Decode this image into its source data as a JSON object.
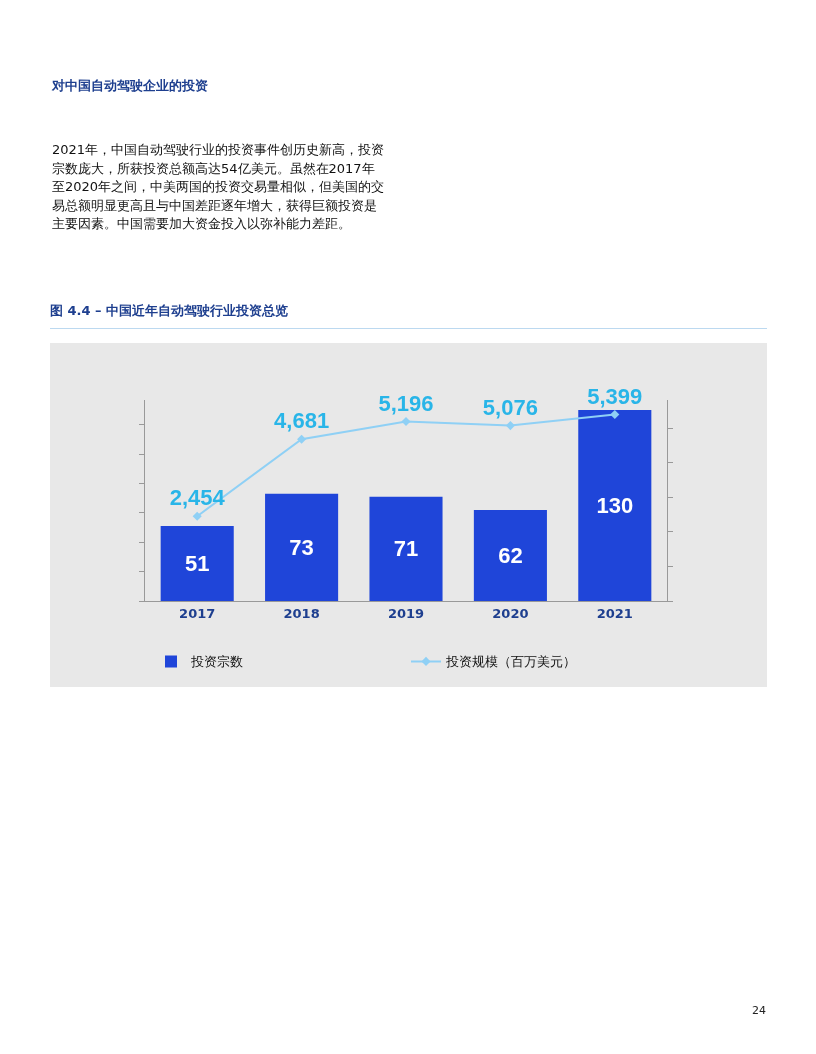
{
  "chart_data": {
    "type": "bar",
    "title": "图 4.4 – 中国近年自动驾驶行业投资总览",
    "annotations": [
      "对中国自动驾驶企业的投资",
      "2021年，中国自动驾驶行业的投资事件创历史新高，投资宗数庞大，所获投资总额高达54亿美元。虽然在2017年至2020年之间，中美两国的投资交易量相似，但美国的交易总额明显更高且与中国差距逐年增大，获得巨额投资是主要因素。中国需要加大资金投入以弥补能力差距。",
      "24"
    ],
    "categories": [
      "2017",
      "2018",
      "2019",
      "2020",
      "2021"
    ],
    "series": [
      {
        "name": "投资宗数",
        "color": "#1f45d9",
        "values": [
          51,
          73,
          71,
          62,
          130
        ],
        "value_labels": [
          "51",
          "73",
          "71",
          "62",
          "130"
        ]
      },
      {
        "name": "投资规模（百万美元）",
        "type": "line",
        "axis": "y2",
        "color": "#8fd0f5",
        "values": [
          2454,
          4681,
          5196,
          5076,
          5399
        ],
        "value_labels": [
          "2,454",
          "4,681",
          "5,196",
          "5,076",
          "5,399"
        ]
      }
    ],
    "tick_labels": "x",
    "legend": "bottom",
    "grid": false,
    "marker": "diamond",
    "line_style": "solid"
  }
}
